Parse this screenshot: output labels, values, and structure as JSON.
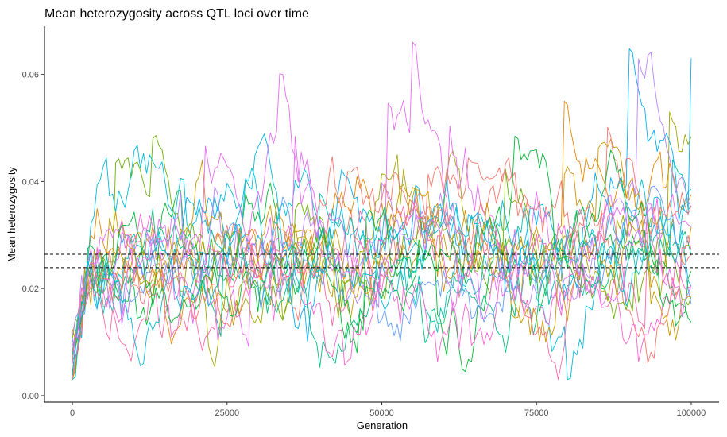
{
  "chart_data": {
    "type": "line",
    "title": "Mean heterozygosity across QTL loci over time",
    "xlabel": "Generation",
    "ylabel": "Mean heterozygosity",
    "xlim": [
      -4500,
      104500
    ],
    "ylim": [
      -0.0012,
      0.069
    ],
    "x_ticks": [
      0,
      25000,
      50000,
      75000,
      100000
    ],
    "x_tick_labels": [
      "0",
      "25000",
      "50000",
      "75000",
      "100000"
    ],
    "y_ticks": [
      0,
      0.02,
      0.04,
      0.06
    ],
    "y_tick_labels": [
      "0.00",
      "0.02",
      "0.04",
      "0.06"
    ],
    "grid": false,
    "legend": "none",
    "x_range": [
      0,
      100000
    ],
    "x_step": 500,
    "palette": [
      "#F8766D",
      "#E58700",
      "#C99800",
      "#A3A500",
      "#6BB100",
      "#00BA38",
      "#00BF7D",
      "#00C0AF",
      "#00BCD8",
      "#00B0F6",
      "#619CFF",
      "#B983FF",
      "#E76BF3",
      "#FD61D1",
      "#FF67A4"
    ],
    "series": [
      {
        "seed": 11,
        "start": 0.006,
        "plateau": 0.025,
        "spread": 0.0085,
        "color": "#F8766D"
      },
      {
        "seed": 23,
        "start": 0.004,
        "plateau": 0.027,
        "spread": 0.009,
        "color": "#E58700"
      },
      {
        "seed": 37,
        "start": 0.008,
        "plateau": 0.024,
        "spread": 0.008,
        "color": "#C99800"
      },
      {
        "seed": 41,
        "start": 0.003,
        "plateau": 0.026,
        "spread": 0.0095,
        "color": "#A3A500"
      },
      {
        "seed": 53,
        "start": 0.01,
        "plateau": 0.023,
        "spread": 0.0075,
        "color": "#6BB100"
      },
      {
        "seed": 67,
        "start": 0.005,
        "plateau": 0.028,
        "spread": 0.009,
        "color": "#00BA38"
      },
      {
        "seed": 71,
        "start": 0.007,
        "plateau": 0.025,
        "spread": 0.0085,
        "color": "#00BF7D"
      },
      {
        "seed": 83,
        "start": 0.002,
        "plateau": 0.024,
        "spread": 0.008,
        "color": "#00C0AF"
      },
      {
        "seed": 97,
        "start": 0.009,
        "plateau": 0.026,
        "spread": 0.01,
        "color": "#00BCD8"
      },
      {
        "seed": 101,
        "start": 0.004,
        "plateau": 0.027,
        "spread": 0.0095,
        "color": "#00B0F6"
      },
      {
        "seed": 113,
        "start": 0.006,
        "plateau": 0.023,
        "spread": 0.008,
        "color": "#619CFF"
      },
      {
        "seed": 127,
        "start": 0.011,
        "plateau": 0.025,
        "spread": 0.0085,
        "color": "#B983FF"
      },
      {
        "seed": 131,
        "start": 0.005,
        "plateau": 0.026,
        "spread": 0.009,
        "color": "#E76BF3"
      },
      {
        "seed": 149,
        "start": 0.008,
        "plateau": 0.024,
        "spread": 0.0085,
        "color": "#FD61D1"
      },
      {
        "seed": 157,
        "start": 0.003,
        "plateau": 0.025,
        "spread": 0.009,
        "color": "#FF67A4"
      },
      {
        "seed": 163,
        "start": 0.007,
        "plateau": 0.027,
        "spread": 0.008,
        "color": "#F8766D"
      },
      {
        "seed": 173,
        "start": 0.009,
        "plateau": 0.024,
        "spread": 0.0095,
        "color": "#C99800"
      },
      {
        "seed": 181,
        "start": 0.004,
        "plateau": 0.026,
        "spread": 0.0085,
        "color": "#00BA38"
      },
      {
        "seed": 191,
        "start": 0.006,
        "plateau": 0.025,
        "spread": 0.009,
        "color": "#00BCD8"
      },
      {
        "seed": 199,
        "start": 0.01,
        "plateau": 0.023,
        "spread": 0.008,
        "color": "#E76BF3"
      }
    ],
    "reference_lines": [
      {
        "y": 0.0264,
        "style": "dashed",
        "color": "#000000"
      },
      {
        "y": 0.0239,
        "style": "dashed",
        "color": "#000000"
      }
    ]
  }
}
